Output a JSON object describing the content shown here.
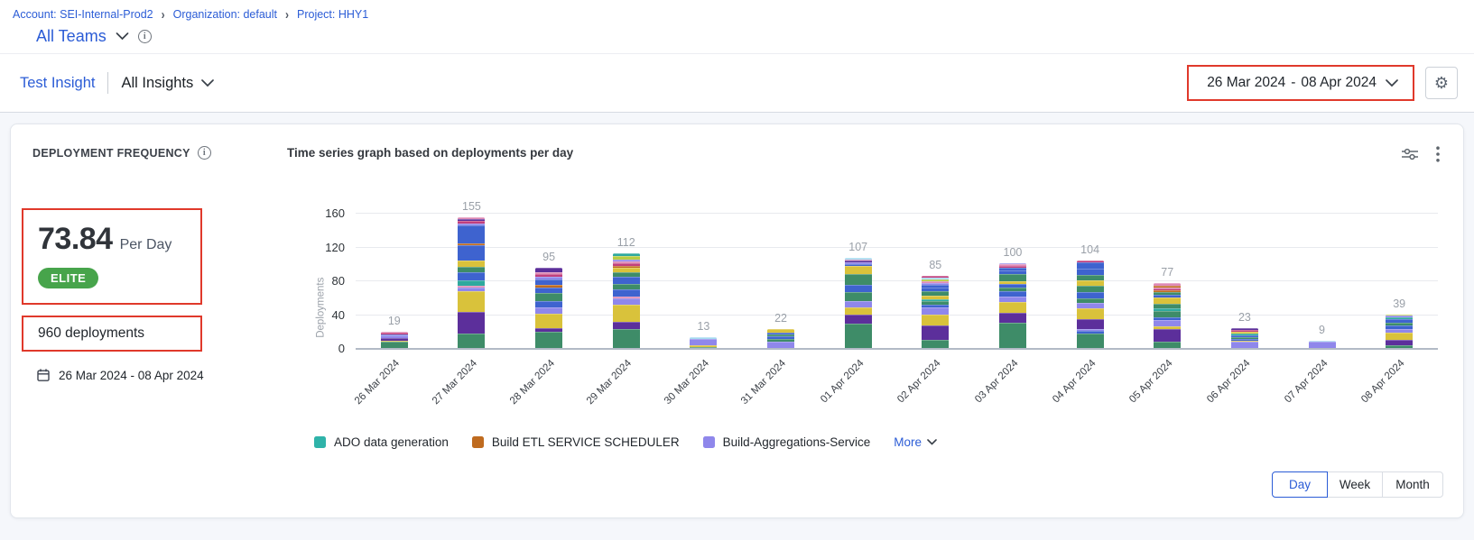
{
  "breadcrumb": {
    "separator": "›",
    "items": [
      "Account: SEI-Internal-Prod2",
      "Organization: default",
      "Project: HHY1"
    ]
  },
  "team_selector": {
    "label": "All Teams"
  },
  "insight_bar": {
    "insight_name": "Test Insight",
    "scope_label": "All Insights",
    "date_start": "26 Mar 2024",
    "date_dash": "-",
    "date_end": "08 Apr 2024"
  },
  "widget": {
    "title": "DEPLOYMENT FREQUENCY",
    "metric_value": "73.84",
    "metric_unit": "Per Day",
    "badge_label": "ELITE",
    "total_deployments": "960 deployments",
    "date_range": "26 Mar 2024 - 08 Apr 2024",
    "chart_title": "Time series graph based on deployments per day"
  },
  "colors": {
    "accent_blue": "#2b5cd6",
    "annotation_red": "#e0392b",
    "elite_green": "#47a44b"
  },
  "granularity": {
    "options": [
      "Day",
      "Week",
      "Month"
    ],
    "selected": "Day"
  },
  "chart_data": {
    "type": "bar",
    "stacked": true,
    "title": "Time series graph based on deployments per day",
    "xlabel": "",
    "ylabel": "Deployments",
    "ylim": [
      0,
      160
    ],
    "yticks": [
      0,
      40,
      80,
      120,
      160
    ],
    "grid": true,
    "legend_position": "bottom",
    "categories": [
      "26 Mar 2024",
      "27 Mar 2024",
      "28 Mar 2024",
      "29 Mar 2024",
      "30 Mar 2024",
      "31 Mar 2024",
      "01 Apr 2024",
      "02 Apr 2024",
      "03 Apr 2024",
      "04 Apr 2024",
      "05 Apr 2024",
      "06 Apr 2024",
      "07 Apr 2024",
      "08 Apr 2024"
    ],
    "totals": [
      19,
      155,
      95,
      112,
      13,
      22,
      107,
      85,
      100,
      104,
      77,
      23,
      9,
      39
    ],
    "palette": {
      "green": "#3e8c68",
      "purple": "#5c2f9b",
      "yellow": "#d9c23b",
      "lavender": "#8f87eb",
      "blue": "#3e63cf",
      "teal": "#2fa99e",
      "orange": "#bf6b1f",
      "crimson": "#c23f7d",
      "pink": "#df8ab5",
      "sky": "#a5daf0",
      "olive": "#b8cc42"
    },
    "stacks": [
      [
        [
          "green",
          8
        ],
        [
          "yellow",
          1
        ],
        [
          "purple",
          3
        ],
        [
          "lavender",
          3
        ],
        [
          "blue",
          1
        ],
        [
          "crimson",
          2
        ],
        [
          "pink",
          1
        ]
      ],
      [
        [
          "green",
          17
        ],
        [
          "purple",
          26
        ],
        [
          "yellow",
          24
        ],
        [
          "lavender",
          5
        ],
        [
          "pink",
          2
        ],
        [
          "teal",
          6
        ],
        [
          "blue",
          10
        ],
        [
          "green",
          6
        ],
        [
          "yellow",
          8
        ],
        [
          "blue",
          18
        ],
        [
          "orange",
          2
        ],
        [
          "blue",
          21
        ],
        [
          "lavender",
          2
        ],
        [
          "crimson",
          3
        ],
        [
          "purple",
          3
        ],
        [
          "pink",
          2
        ]
      ],
      [
        [
          "green",
          19
        ],
        [
          "purple",
          5
        ],
        [
          "yellow",
          17
        ],
        [
          "lavender",
          7
        ],
        [
          "blue",
          8
        ],
        [
          "green",
          9
        ],
        [
          "blue",
          7
        ],
        [
          "orange",
          3
        ],
        [
          "blue",
          6
        ],
        [
          "lavender",
          3
        ],
        [
          "crimson",
          4
        ],
        [
          "pink",
          2
        ],
        [
          "purple",
          5
        ]
      ],
      [
        [
          "green",
          22
        ],
        [
          "purple",
          9
        ],
        [
          "yellow",
          20
        ],
        [
          "lavender",
          8
        ],
        [
          "pink",
          2
        ],
        [
          "blue",
          8
        ],
        [
          "green",
          7
        ],
        [
          "blue",
          8
        ],
        [
          "green",
          6
        ],
        [
          "yellow",
          5
        ],
        [
          "orange",
          2
        ],
        [
          "crimson",
          3
        ],
        [
          "pink",
          2
        ],
        [
          "lavender",
          3
        ],
        [
          "olive",
          4
        ],
        [
          "teal",
          3
        ]
      ],
      [
        [
          "green",
          1
        ],
        [
          "yellow",
          2
        ],
        [
          "lavender",
          8
        ],
        [
          "sky",
          2
        ]
      ],
      [
        [
          "lavender",
          8
        ],
        [
          "green",
          3
        ],
        [
          "blue",
          3
        ],
        [
          "green",
          2
        ],
        [
          "blue",
          2
        ],
        [
          "yellow",
          4
        ]
      ],
      [
        [
          "green",
          29
        ],
        [
          "purple",
          10
        ],
        [
          "yellow",
          9
        ],
        [
          "lavender",
          8
        ],
        [
          "green",
          10
        ],
        [
          "blue",
          9
        ],
        [
          "green",
          13
        ],
        [
          "yellow",
          9
        ],
        [
          "blue",
          2
        ],
        [
          "lavender",
          2
        ],
        [
          "purple",
          2
        ],
        [
          "pink",
          2
        ],
        [
          "sky",
          2
        ]
      ],
      [
        [
          "green",
          10
        ],
        [
          "purple",
          17
        ],
        [
          "yellow",
          12
        ],
        [
          "lavender",
          9
        ],
        [
          "blue",
          3
        ],
        [
          "green",
          4
        ],
        [
          "teal",
          3
        ],
        [
          "yellow",
          4
        ],
        [
          "green",
          5
        ],
        [
          "blue",
          5
        ],
        [
          "blue",
          3
        ],
        [
          "lavender",
          2
        ],
        [
          "pink",
          2
        ],
        [
          "olive",
          2
        ],
        [
          "sky",
          2
        ],
        [
          "crimson",
          2
        ]
      ],
      [
        [
          "green",
          30
        ],
        [
          "purple",
          12
        ],
        [
          "yellow",
          12
        ],
        [
          "lavender",
          7
        ],
        [
          "blue",
          6
        ],
        [
          "green",
          4
        ],
        [
          "blue",
          5
        ],
        [
          "yellow",
          3
        ],
        [
          "green",
          9
        ],
        [
          "blue",
          4
        ],
        [
          "blue",
          3
        ],
        [
          "crimson",
          2
        ],
        [
          "pink",
          2
        ],
        [
          "lavender",
          1
        ]
      ],
      [
        [
          "green",
          17
        ],
        [
          "blue",
          3
        ],
        [
          "lavender",
          2
        ],
        [
          "purple",
          12
        ],
        [
          "yellow",
          13
        ],
        [
          "lavender",
          6
        ],
        [
          "green",
          6
        ],
        [
          "blue",
          7
        ],
        [
          "green",
          8
        ],
        [
          "yellow",
          6
        ],
        [
          "green",
          6
        ],
        [
          "blue",
          8
        ],
        [
          "blue",
          7
        ],
        [
          "crimson",
          3
        ]
      ],
      [
        [
          "green",
          8
        ],
        [
          "purple",
          14
        ],
        [
          "yellow",
          4
        ],
        [
          "lavender",
          7
        ],
        [
          "blue",
          3
        ],
        [
          "green",
          8
        ],
        [
          "teal",
          3
        ],
        [
          "green",
          5
        ],
        [
          "yellow",
          8
        ],
        [
          "blue",
          3
        ],
        [
          "green",
          3
        ],
        [
          "orange",
          2
        ],
        [
          "crimson",
          2
        ],
        [
          "pink",
          2
        ],
        [
          "orange",
          2
        ],
        [
          "pink",
          3
        ]
      ],
      [
        [
          "lavender",
          7
        ],
        [
          "yellow",
          2
        ],
        [
          "blue",
          2
        ],
        [
          "green",
          2
        ],
        [
          "blue",
          2
        ],
        [
          "teal",
          2
        ],
        [
          "yellow",
          2
        ],
        [
          "crimson",
          2
        ],
        [
          "purple",
          2
        ]
      ],
      [
        [
          "lavender",
          7
        ],
        [
          "sky",
          2
        ]
      ],
      [
        [
          "green",
          3
        ],
        [
          "purple",
          7
        ],
        [
          "yellow",
          8
        ],
        [
          "lavender",
          4
        ],
        [
          "blue",
          5
        ],
        [
          "green",
          3
        ],
        [
          "blue",
          4
        ],
        [
          "teal",
          2
        ],
        [
          "lavender",
          2
        ],
        [
          "olive",
          1
        ]
      ]
    ],
    "legend": [
      {
        "label": "ADO data generation",
        "color": "#2fb3a9"
      },
      {
        "label": "Build ETL SERVICE SCHEDULER",
        "color": "#bf6b1f"
      },
      {
        "label": "Build-Aggregations-Service",
        "color": "#8f87eb"
      }
    ],
    "more_label": "More"
  }
}
